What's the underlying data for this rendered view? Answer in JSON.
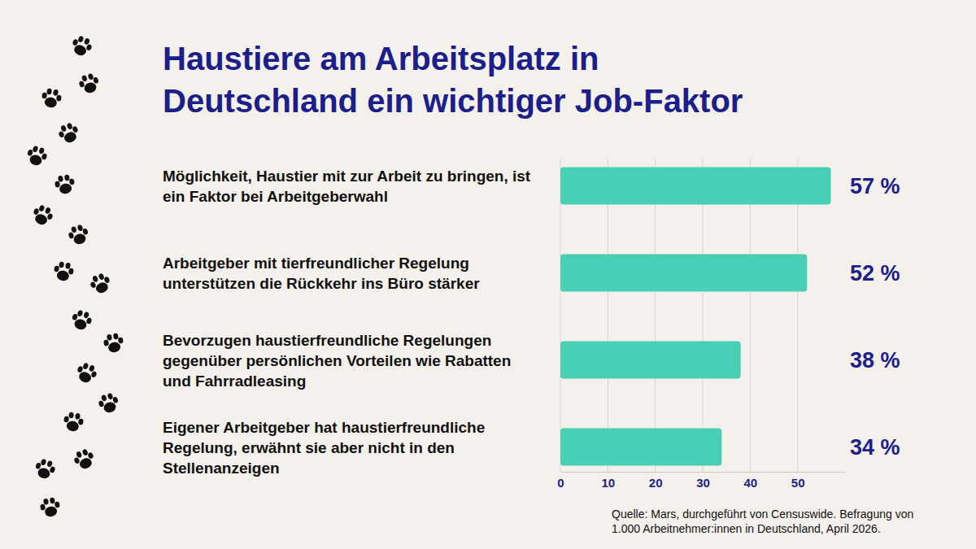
{
  "chart_data": {
    "type": "bar",
    "orientation": "horizontal",
    "title": "Haustiere am Arbeitsplatz in Deutschland ein wichtiger Job-Faktor",
    "categories": [
      "Möglichkeit, Haustier mit zur Arbeit zu bringen, ist ein Faktor bei Arbeitgeberwahl",
      "Arbeitgeber mit tierfreundlicher Regelung unterstützen die Rückkehr ins Büro stärker",
      "Bevorzugen haustierfreundliche Regelungen gegenüber persönlichen Vorteilen wie Rabatten und Fahrradleasing",
      "Eigener Arbeitgeber hat haustierfreundliche Regelung, erwähnt sie aber nicht in den Stellenanzeigen"
    ],
    "values": [
      57,
      52,
      38,
      34
    ],
    "value_labels": [
      "57 %",
      "52 %",
      "38 %",
      "34 %"
    ],
    "data_labels": true,
    "color": "#48cfb6",
    "xlim": [
      0,
      60
    ],
    "xticks": [
      0,
      10,
      20,
      30,
      40,
      50
    ],
    "grid": true,
    "source": "Quelle: Mars, durchgeführt von Censuswide. Befragung von 1.000 Arbeitnehmer:innen in Deutschland, April 2026."
  }
}
